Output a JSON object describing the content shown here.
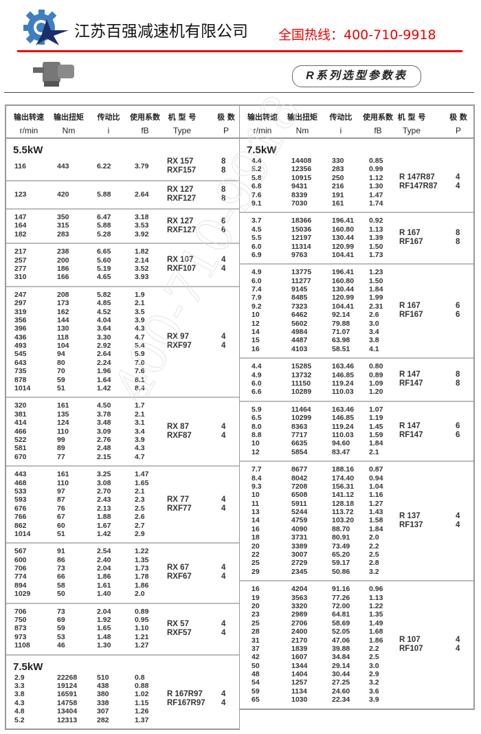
{
  "header": {
    "company": "江苏百强减速机有限公司",
    "hotline": "全国热线：400-710-9918",
    "table_title": "R系列选型参数表",
    "logo_icon": "gear-star-logo-icon",
    "product_image": "gear-motor-image",
    "brand_colors": {
      "red": "#ee0000",
      "blue": "#3f7fbf",
      "navy": "#1c2f6b"
    }
  },
  "watermark": "400-710-9918",
  "columns": [
    {
      "cn": "输出转速",
      "en": "r/min"
    },
    {
      "cn": "输出扭矩",
      "en": "Nm"
    },
    {
      "cn": "传动比",
      "en": "i"
    },
    {
      "cn": "使用系数",
      "en": "fB"
    },
    {
      "cn": "机 型 号",
      "en": "Type"
    },
    {
      "cn": "极 数",
      "en": "P"
    }
  ],
  "left": [
    {
      "power": "5.5kW",
      "types": [
        "RX 157",
        "RXF157"
      ],
      "poles": [
        "8",
        "8"
      ],
      "rows": [
        [
          "116",
          "443",
          "6.22",
          "3.79"
        ]
      ]
    },
    {
      "types": [
        "RX 127",
        "RXF127"
      ],
      "poles": [
        "8",
        "8"
      ],
      "rows": [
        [
          "123",
          "420",
          "5.88",
          "2.64"
        ]
      ]
    },
    {
      "types": [
        "RX 127",
        "RXF127"
      ],
      "poles": [
        "6",
        "6"
      ],
      "rows": [
        [
          "147",
          "350",
          "6.47",
          "3.18"
        ],
        [
          "164",
          "315",
          "5.88",
          "3.53"
        ],
        [
          "182",
          "283",
          "5.28",
          "3.92"
        ]
      ]
    },
    {
      "types": [
        "RX 107",
        "RXF107"
      ],
      "poles": [
        "4",
        "4"
      ],
      "rows": [
        [
          "217",
          "238",
          "6.65",
          "1.82"
        ],
        [
          "257",
          "200",
          "5.60",
          "2.14"
        ],
        [
          "277",
          "186",
          "5.19",
          "3.52"
        ],
        [
          "310",
          "166",
          "4.65",
          "3.93"
        ]
      ]
    },
    {
      "types": [
        "RX 97",
        "RXF97"
      ],
      "poles": [
        "4",
        "4"
      ],
      "rows": [
        [
          "247",
          "208",
          "5.82",
          "1.9"
        ],
        [
          "297",
          "173",
          "4.85",
          "2.1"
        ],
        [
          "319",
          "162",
          "4.52",
          "3.5"
        ],
        [
          "356",
          "144",
          "4.04",
          "3.9"
        ],
        [
          "396",
          "130",
          "3.64",
          "4.3"
        ],
        [
          "436",
          "118",
          "3.30",
          "4.7"
        ],
        [
          "493",
          "104",
          "2.92",
          "5.4"
        ],
        [
          "545",
          "94",
          "2.64",
          "5.9"
        ],
        [
          "643",
          "80",
          "2.24",
          "7.0"
        ],
        [
          "735",
          "70",
          "1.96",
          "7.6"
        ],
        [
          "878",
          "59",
          "1.64",
          "8.1"
        ],
        [
          "1014",
          "51",
          "1.42",
          "8.4"
        ]
      ]
    },
    {
      "types": [
        "RX 87",
        "RXF87"
      ],
      "poles": [
        "4",
        "4"
      ],
      "rows": [
        [
          "320",
          "161",
          "4.50",
          "1.7"
        ],
        [
          "381",
          "135",
          "3.78",
          "2.1"
        ],
        [
          "414",
          "124",
          "3.48",
          "3.1"
        ],
        [
          "466",
          "110",
          "3.09",
          "3.4"
        ],
        [
          "522",
          "99",
          "2.76",
          "3.9"
        ],
        [
          "581",
          "89",
          "2.48",
          "4.3"
        ],
        [
          "670",
          "77",
          "2.15",
          "4.7"
        ]
      ]
    },
    {
      "types": [
        "RX 77",
        "RXF77"
      ],
      "poles": [
        "4",
        "4"
      ],
      "rows": [
        [
          "443",
          "161",
          "3.25",
          "1.47"
        ],
        [
          "468",
          "110",
          "3.08",
          "1.65"
        ],
        [
          "533",
          "97",
          "2.70",
          "2.1"
        ],
        [
          "593",
          "87",
          "2.43",
          "2.3"
        ],
        [
          "676",
          "76",
          "2.13",
          "2.5"
        ],
        [
          "766",
          "67",
          "1.88",
          "2.6"
        ],
        [
          "862",
          "60",
          "1.67",
          "2.7"
        ],
        [
          "1014",
          "51",
          "1.42",
          "2.9"
        ]
      ]
    },
    {
      "types": [
        "RX 67",
        "RXF67"
      ],
      "poles": [
        "4",
        "4"
      ],
      "rows": [
        [
          "567",
          "91",
          "2.54",
          "1.22"
        ],
        [
          "600",
          "86",
          "2.40",
          "1.35"
        ],
        [
          "706",
          "73",
          "2.04",
          "1.73"
        ],
        [
          "774",
          "66",
          "1.86",
          "1.78"
        ],
        [
          "894",
          "58",
          "1.61",
          "1.86"
        ],
        [
          "1029",
          "50",
          "1.40",
          "2.0"
        ]
      ]
    },
    {
      "types": [
        "RX 57",
        "RXF57"
      ],
      "poles": [
        "4",
        "4"
      ],
      "rows": [
        [
          "706",
          "73",
          "2.04",
          "0.89"
        ],
        [
          "750",
          "69",
          "1.92",
          "0.95"
        ],
        [
          "873",
          "59",
          "1.65",
          "1.10"
        ],
        [
          "973",
          "53",
          "1.48",
          "1.21"
        ],
        [
          "1108",
          "46",
          "1.30",
          "1.27"
        ]
      ]
    },
    {
      "power": "7.5kW",
      "types": [
        "R 167R97",
        "RF167R97"
      ],
      "poles": [
        "4",
        "4"
      ],
      "rows": [
        [
          "2.9",
          "22268",
          "510",
          "0.8"
        ],
        [
          "3.3",
          "19124",
          "438",
          "0.88"
        ],
        [
          "3.8",
          "16591",
          "380",
          "1.02"
        ],
        [
          "4.3",
          "14758",
          "338",
          "1.15"
        ],
        [
          "4.8",
          "13404",
          "307",
          "1.26"
        ],
        [
          "5.2",
          "12313",
          "282",
          "1.37"
        ]
      ]
    }
  ],
  "right": [
    {
      "power": "7.5kW",
      "types": [
        "R 147R87",
        "RF147R87"
      ],
      "poles": [
        "4",
        "4"
      ],
      "rows": [
        [
          "4.4",
          "14408",
          "330",
          "0.85"
        ],
        [
          "5.2",
          "12356",
          "283",
          "0.99"
        ],
        [
          "5.8",
          "10915",
          "250",
          "1.12"
        ],
        [
          "6.8",
          "9431",
          "216",
          "1.30"
        ],
        [
          "7.6",
          "8339",
          "191",
          "1.47"
        ],
        [
          "9.1",
          "7030",
          "161",
          "1.74"
        ]
      ]
    },
    {
      "types": [
        "R 167",
        "RF167"
      ],
      "poles": [
        "8",
        "8"
      ],
      "rows": [
        [
          "3.7",
          "18366",
          "196.41",
          "0.92"
        ],
        [
          "4.5",
          "15036",
          "160.80",
          "1.13"
        ],
        [
          "5.5",
          "12197",
          "130.44",
          "1.39"
        ],
        [
          "6.0",
          "11314",
          "120.99",
          "1.50"
        ],
        [
          "6.9",
          "9763",
          "104.41",
          "1.73"
        ]
      ]
    },
    {
      "types": [
        "R 167",
        "RF167"
      ],
      "poles": [
        "6",
        "6"
      ],
      "rows": [
        [
          "4.9",
          "13775",
          "196.41",
          "1.23"
        ],
        [
          "6.0",
          "11277",
          "160.80",
          "1.50"
        ],
        [
          "7.4",
          "9145",
          "130.44",
          "1.84"
        ],
        [
          "7.9",
          "8485",
          "120.99",
          "1.99"
        ],
        [
          "9.2",
          "7323",
          "104.41",
          "2.31"
        ],
        [
          "10",
          "6462",
          "92.14",
          "2.6"
        ],
        [
          "12",
          "5602",
          "79.88",
          "3.0"
        ],
        [
          "14",
          "4984",
          "71.07",
          "3.4"
        ],
        [
          "15",
          "4487",
          "63.98",
          "3.8"
        ],
        [
          "16",
          "4103",
          "58.51",
          "4.1"
        ]
      ]
    },
    {
      "types": [
        "R 147",
        "RF147"
      ],
      "poles": [
        "8",
        "8"
      ],
      "rows": [
        [
          "4.4",
          "15285",
          "163.46",
          "0.80"
        ],
        [
          "4.9",
          "13732",
          "146.85",
          "0.89"
        ],
        [
          "6.0",
          "11150",
          "119.24",
          "1.09"
        ],
        [
          "6.6",
          "10289",
          "110.03",
          "1.20"
        ]
      ]
    },
    {
      "types": [
        "R 147",
        "RF147"
      ],
      "poles": [
        "6",
        "6"
      ],
      "rows": [
        [
          "5.9",
          "11464",
          "163.46",
          "1.07"
        ],
        [
          "6.5",
          "10299",
          "146.85",
          "1.19"
        ],
        [
          "8.0",
          "8363",
          "119.24",
          "1.45"
        ],
        [
          "8.8",
          "7717",
          "110.03",
          "1.59"
        ],
        [
          "10",
          "6635",
          "94.60",
          "1.84"
        ],
        [
          "12",
          "5854",
          "83.47",
          "2.1"
        ]
      ]
    },
    {
      "types": [
        "R 137",
        "RF137"
      ],
      "poles": [
        "4",
        "4"
      ],
      "rows": [
        [
          "7.7",
          "8677",
          "188.16",
          "0.87"
        ],
        [
          "8.4",
          "8042",
          "174.40",
          "0.94"
        ],
        [
          "9.3",
          "7208",
          "156.31",
          "1.04"
        ],
        [
          "10",
          "6508",
          "141.12",
          "1.16"
        ],
        [
          "11",
          "5911",
          "128.18",
          "1.27"
        ],
        [
          "13",
          "5244",
          "113.72",
          "1.43"
        ],
        [
          "14",
          "4759",
          "103.20",
          "1.58"
        ],
        [
          "16",
          "4090",
          "88.70",
          "1.84"
        ],
        [
          "18",
          "3731",
          "80.91",
          "2.0"
        ],
        [
          "20",
          "3389",
          "73.49",
          "2.2"
        ],
        [
          "22",
          "3007",
          "65.20",
          "2.5"
        ],
        [
          "25",
          "2729",
          "59.17",
          "2.8"
        ],
        [
          "29",
          "2345",
          "50.86",
          "3.2"
        ]
      ]
    },
    {
      "types": [
        "R 107",
        "RF107"
      ],
      "poles": [
        "4",
        "4"
      ],
      "rows": [
        [
          "16",
          "4204",
          "91.16",
          "0.96"
        ],
        [
          "19",
          "3563",
          "77.26",
          "1.13"
        ],
        [
          "20",
          "3320",
          "72.00",
          "1.22"
        ],
        [
          "23",
          "2989",
          "64.81",
          "1.35"
        ],
        [
          "25",
          "2706",
          "58.69",
          "1.49"
        ],
        [
          "28",
          "2400",
          "52.05",
          "1.68"
        ],
        [
          "31",
          "2170",
          "47.06",
          "1.86"
        ],
        [
          "37",
          "1839",
          "39.88",
          "2.2"
        ],
        [
          "42",
          "1607",
          "34.84",
          "2.5"
        ],
        [
          "50",
          "1344",
          "29.14",
          "3.0"
        ],
        [
          "48",
          "1404",
          "30.44",
          "2.9"
        ],
        [
          "54",
          "1257",
          "27.25",
          "3.2"
        ],
        [
          "59",
          "1134",
          "24.60",
          "3.6"
        ],
        [
          "65",
          "1030",
          "22.34",
          "3.9"
        ]
      ]
    }
  ]
}
